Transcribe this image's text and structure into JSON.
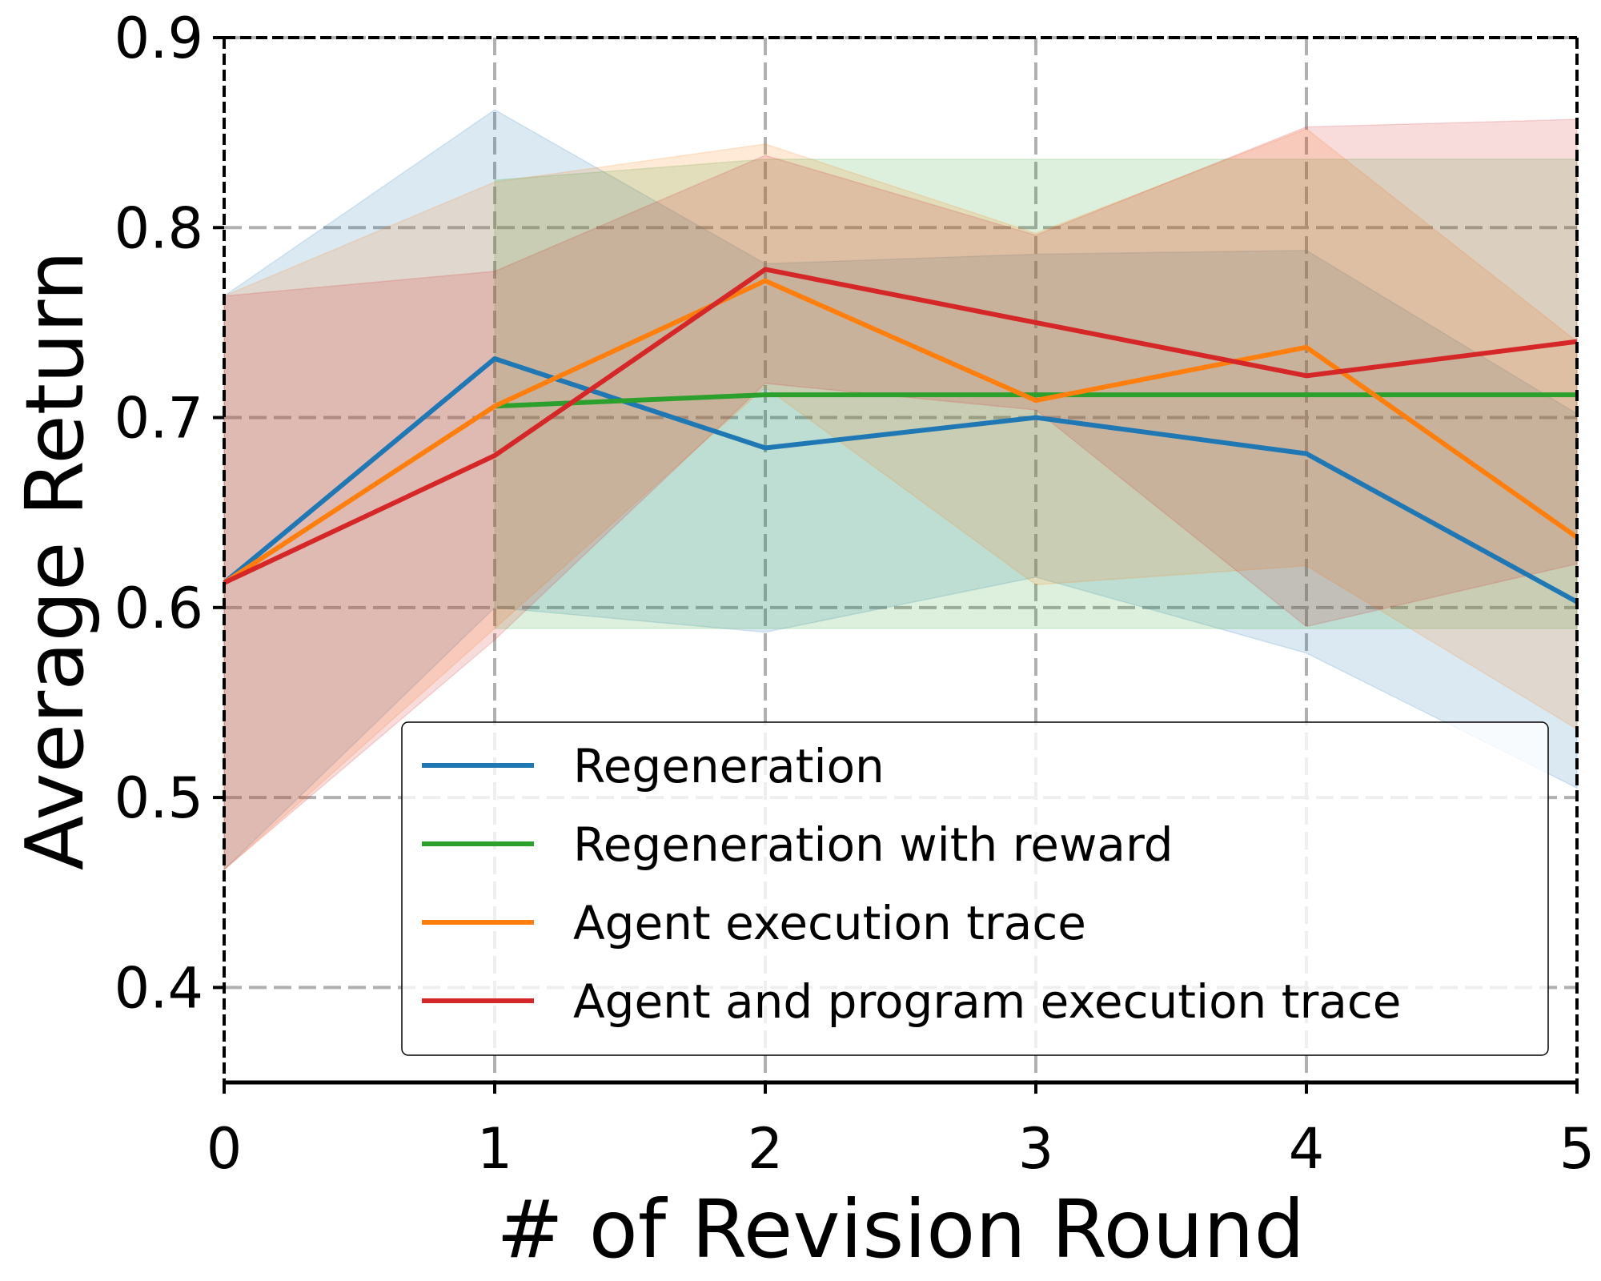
{
  "chart_data": {
    "type": "line",
    "title": "",
    "xlabel": "# of Revision Round",
    "ylabel": "Average Return",
    "x": [
      0,
      1,
      2,
      3,
      4,
      5
    ],
    "xlim": [
      0,
      5
    ],
    "ylim": [
      0.35,
      0.9
    ],
    "xticks": [
      0,
      1,
      2,
      3,
      4,
      5
    ],
    "yticks": [
      0.4,
      0.5,
      0.6,
      0.7,
      0.8,
      0.9
    ],
    "xtick_labels": [
      "0",
      "1",
      "2",
      "3",
      "4",
      "5"
    ],
    "ytick_labels": [
      "0.4",
      "0.5",
      "0.6",
      "0.7",
      "0.8",
      "0.9"
    ],
    "grid": true,
    "legend_position": "lower-right",
    "series": [
      {
        "name": "Regeneration",
        "color": "#1f77b4",
        "values": [
          0.613,
          0.731,
          0.684,
          0.7,
          0.681,
          0.603
        ],
        "lower": [
          0.462,
          0.6,
          0.587,
          0.616,
          0.576,
          0.505
        ],
        "upper": [
          0.764,
          0.862,
          0.781,
          0.786,
          0.788,
          0.702
        ]
      },
      {
        "name": "Regeneration with reward",
        "color": "#2ca02c",
        "values": [
          null,
          0.706,
          0.712,
          0.712,
          0.712,
          0.712
        ],
        "lower": [
          null,
          0.589,
          0.589,
          0.589,
          0.589,
          0.589
        ],
        "upper": [
          null,
          0.825,
          0.836,
          0.836,
          0.836,
          0.836
        ]
      },
      {
        "name": "Agent execution trace",
        "color": "#ff7f0e",
        "values": [
          0.613,
          0.706,
          0.772,
          0.709,
          0.737,
          0.637
        ],
        "lower": [
          0.462,
          0.589,
          0.716,
          0.612,
          0.622,
          0.536
        ],
        "upper": [
          0.764,
          0.824,
          0.844,
          0.797,
          0.852,
          0.74
        ]
      },
      {
        "name": "Agent and program execution trace",
        "color": "#d62728",
        "values": [
          0.613,
          0.68,
          0.778,
          0.75,
          0.722,
          0.74
        ],
        "lower": [
          0.462,
          0.583,
          0.718,
          0.704,
          0.59,
          0.623
        ],
        "upper": [
          0.764,
          0.777,
          0.838,
          0.796,
          0.853,
          0.857
        ]
      }
    ]
  }
}
